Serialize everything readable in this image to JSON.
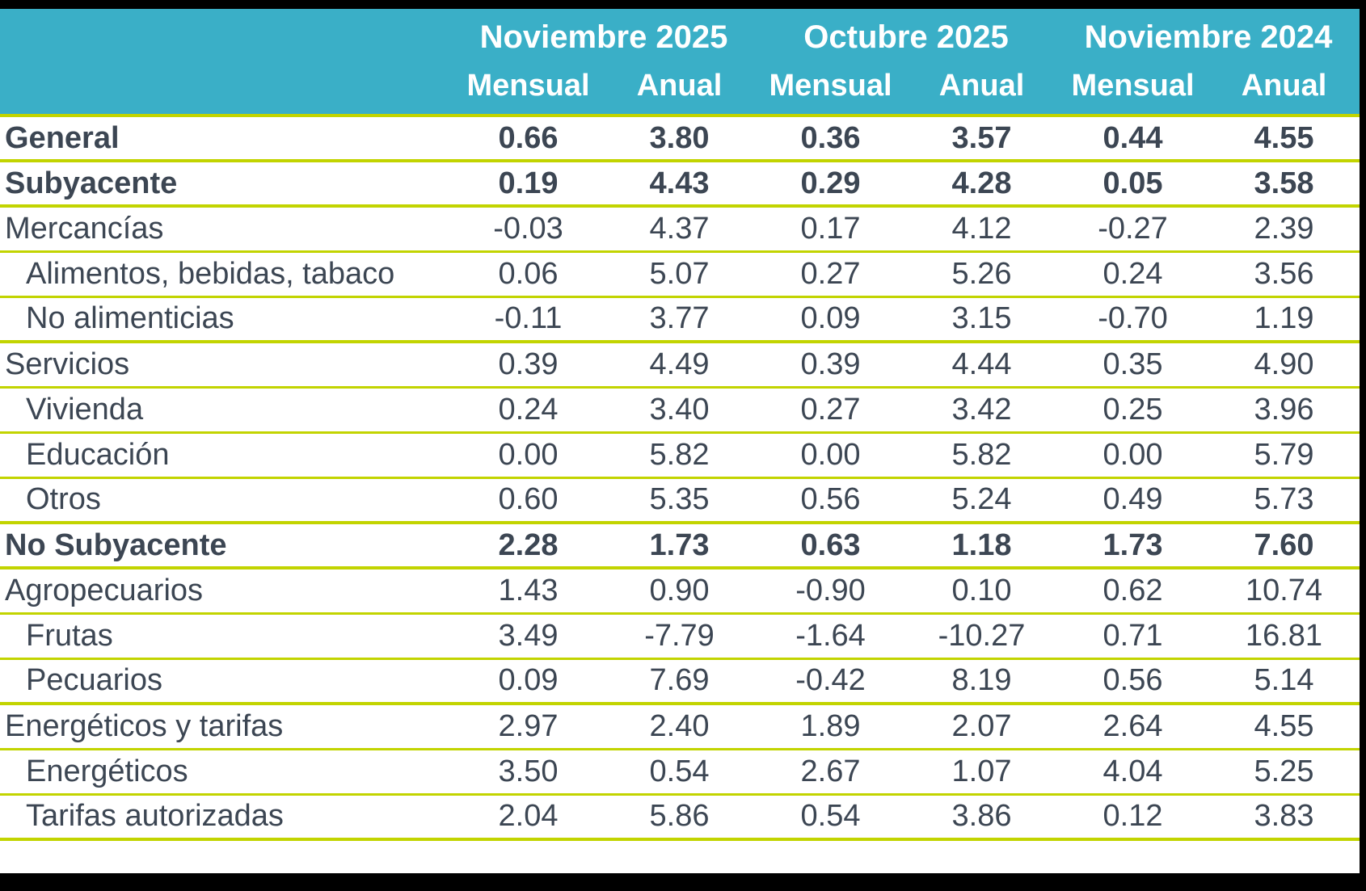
{
  "chart_data": {
    "type": "table",
    "header": {
      "groups": [
        {
          "label": "Noviembre 2025"
        },
        {
          "label": "Octubre 2025"
        },
        {
          "label": "Noviembre 2024"
        }
      ],
      "sub_labels": [
        "Mensual",
        "Anual",
        "Mensual",
        "Anual",
        "Mensual",
        "Anual"
      ]
    },
    "rows": [
      {
        "label": "General",
        "level": 0,
        "bold": true,
        "values": [
          "0.66",
          "3.80",
          "0.36",
          "3.57",
          "0.44",
          "4.55"
        ]
      },
      {
        "label": "Subyacente",
        "level": 0,
        "bold": true,
        "values": [
          "0.19",
          "4.43",
          "0.29",
          "4.28",
          "0.05",
          "3.58"
        ]
      },
      {
        "label": "Mercancías",
        "level": 0,
        "bold": false,
        "values": [
          "-0.03",
          "4.37",
          "0.17",
          "4.12",
          "-0.27",
          "2.39"
        ]
      },
      {
        "label": "Alimentos, bebidas, tabaco",
        "level": 1,
        "bold": false,
        "values": [
          "0.06",
          "5.07",
          "0.27",
          "5.26",
          "0.24",
          "3.56"
        ]
      },
      {
        "label": "No alimenticias",
        "level": 1,
        "bold": false,
        "values": [
          "-0.11",
          "3.77",
          "0.09",
          "3.15",
          "-0.70",
          "1.19"
        ]
      },
      {
        "label": "Servicios",
        "level": 0,
        "bold": false,
        "values": [
          "0.39",
          "4.49",
          "0.39",
          "4.44",
          "0.35",
          "4.90"
        ]
      },
      {
        "label": "Vivienda",
        "level": 1,
        "bold": false,
        "values": [
          "0.24",
          "3.40",
          "0.27",
          "3.42",
          "0.25",
          "3.96"
        ]
      },
      {
        "label": "Educación",
        "level": 1,
        "bold": false,
        "values": [
          "0.00",
          "5.82",
          "0.00",
          "5.82",
          "0.00",
          "5.79"
        ]
      },
      {
        "label": "Otros",
        "level": 1,
        "bold": false,
        "values": [
          "0.60",
          "5.35",
          "0.56",
          "5.24",
          "0.49",
          "5.73"
        ]
      },
      {
        "label": "No Subyacente",
        "level": 0,
        "bold": true,
        "values": [
          "2.28",
          "1.73",
          "0.63",
          "1.18",
          "1.73",
          "7.60"
        ]
      },
      {
        "label": "Agropecuarios",
        "level": 0,
        "bold": false,
        "values": [
          "1.43",
          "0.90",
          "-0.90",
          "0.10",
          "0.62",
          "10.74"
        ]
      },
      {
        "label": "Frutas",
        "level": 1,
        "bold": false,
        "values": [
          "3.49",
          "-7.79",
          "-1.64",
          "-10.27",
          "0.71",
          "16.81"
        ]
      },
      {
        "label": "Pecuarios",
        "level": 1,
        "bold": false,
        "values": [
          "0.09",
          "7.69",
          "-0.42",
          "8.19",
          "0.56",
          "5.14"
        ]
      },
      {
        "label": "Energéticos y tarifas",
        "level": 0,
        "bold": false,
        "values": [
          "2.97",
          "2.40",
          "1.89",
          "2.07",
          "2.64",
          "4.55"
        ]
      },
      {
        "label": "Energéticos",
        "level": 1,
        "bold": false,
        "values": [
          "3.50",
          "0.54",
          "2.67",
          "1.07",
          "4.04",
          "5.25"
        ]
      },
      {
        "label": "Tarifas autorizadas",
        "level": 1,
        "bold": false,
        "values": [
          "2.04",
          "5.86",
          "0.54",
          "3.86",
          "0.12",
          "3.83"
        ]
      }
    ]
  },
  "colors": {
    "header_bg": "#3AAFC7",
    "header_text": "#FFFFFF",
    "row_line": "#C2D400",
    "text": "#3C4653",
    "frame": "#000000"
  }
}
